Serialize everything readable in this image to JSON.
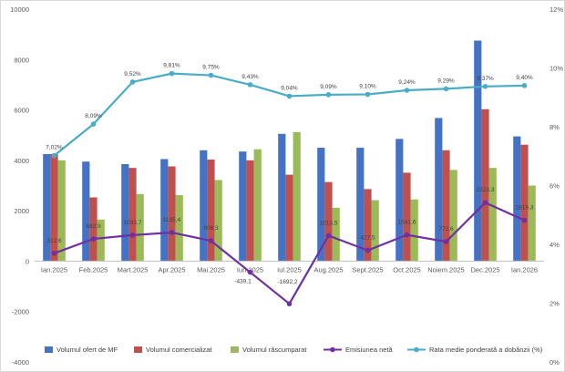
{
  "chart_data": {
    "type": "bar+line",
    "categories": [
      "Ian.2025",
      "Feb.2025",
      "Mart.2025",
      "Apr.2025",
      "Mai.2025",
      "Iun.2025",
      "Iul.2025",
      "Aug.2025",
      "Sept.2025",
      "Oct.2025",
      "Noiem.2025",
      "Dec.2025",
      "Ian.2026"
    ],
    "bar_series": [
      {
        "name": "Volumul ofert de MF",
        "color": "#4472c4",
        "values": [
          4250,
          3950,
          3850,
          4050,
          4400,
          4350,
          5050,
          4500,
          4500,
          4850,
          5680,
          8750,
          4950
        ]
      },
      {
        "name": "Volumul comercializat",
        "color": "#c0504d",
        "values": [
          4250,
          2530,
          3700,
          3760,
          4030,
          4000,
          3430,
          3140,
          2860,
          3510,
          4400,
          6030,
          4620
        ]
      },
      {
        "name": "Volumul răscumparat",
        "color": "#9bbb59",
        "values": [
          4000,
          1650,
          2660,
          2620,
          3220,
          4440,
          5120,
          2120,
          2420,
          2450,
          3620,
          3700,
          3000
        ]
      }
    ],
    "line_series": [
      {
        "name": "Emisiunea netă",
        "color": "#7030a0",
        "axis": "left",
        "values": [
          312.6,
          882.9,
          1033.7,
          1135.4,
          808.3,
          -439.1,
          -1692.2,
          1013.5,
          427.5,
          1041.6,
          772.6,
          2323.3,
          1619.3
        ],
        "labels": [
          "312,6",
          "882,9",
          "1033,7",
          "1135,4",
          "808,3",
          "-439,1",
          "-1692,2",
          "1013,5",
          "427,5",
          "1041,6",
          "772,6",
          "2323,3",
          "1619,3"
        ]
      },
      {
        "name": "Rata medie ponderată a dobânzii (%)",
        "color": "#4bacc6",
        "axis": "right",
        "values": [
          7.02,
          8.09,
          9.52,
          9.81,
          9.75,
          9.43,
          9.04,
          9.09,
          9.1,
          9.24,
          9.29,
          9.37,
          9.4
        ],
        "labels": [
          "7,02%",
          "8,09%",
          "9,52%",
          "9,81%",
          "9,75%",
          "9,43%",
          "9,04%",
          "9,09%",
          "9,10%",
          "9,24%",
          "9,29%",
          "9,37%",
          "9,40%"
        ]
      }
    ],
    "left_axis": {
      "min": -4000,
      "max": 10000,
      "ticks": [
        -4000,
        -2000,
        0,
        2000,
        4000,
        6000,
        8000,
        10000
      ],
      "tick_labels": [
        "-4000",
        "-2000",
        "0",
        "2000",
        "4000",
        "6000",
        "8000",
        "10000"
      ]
    },
    "right_axis": {
      "min": 0,
      "max": 12,
      "ticks": [
        0,
        2,
        4,
        6,
        8,
        10,
        12
      ],
      "tick_labels": [
        "0%",
        "2%",
        "4%",
        "6%",
        "8%",
        "10%",
        "12%"
      ]
    },
    "legend_position": "bottom",
    "title": "",
    "xlabel": "",
    "ylabel": ""
  }
}
